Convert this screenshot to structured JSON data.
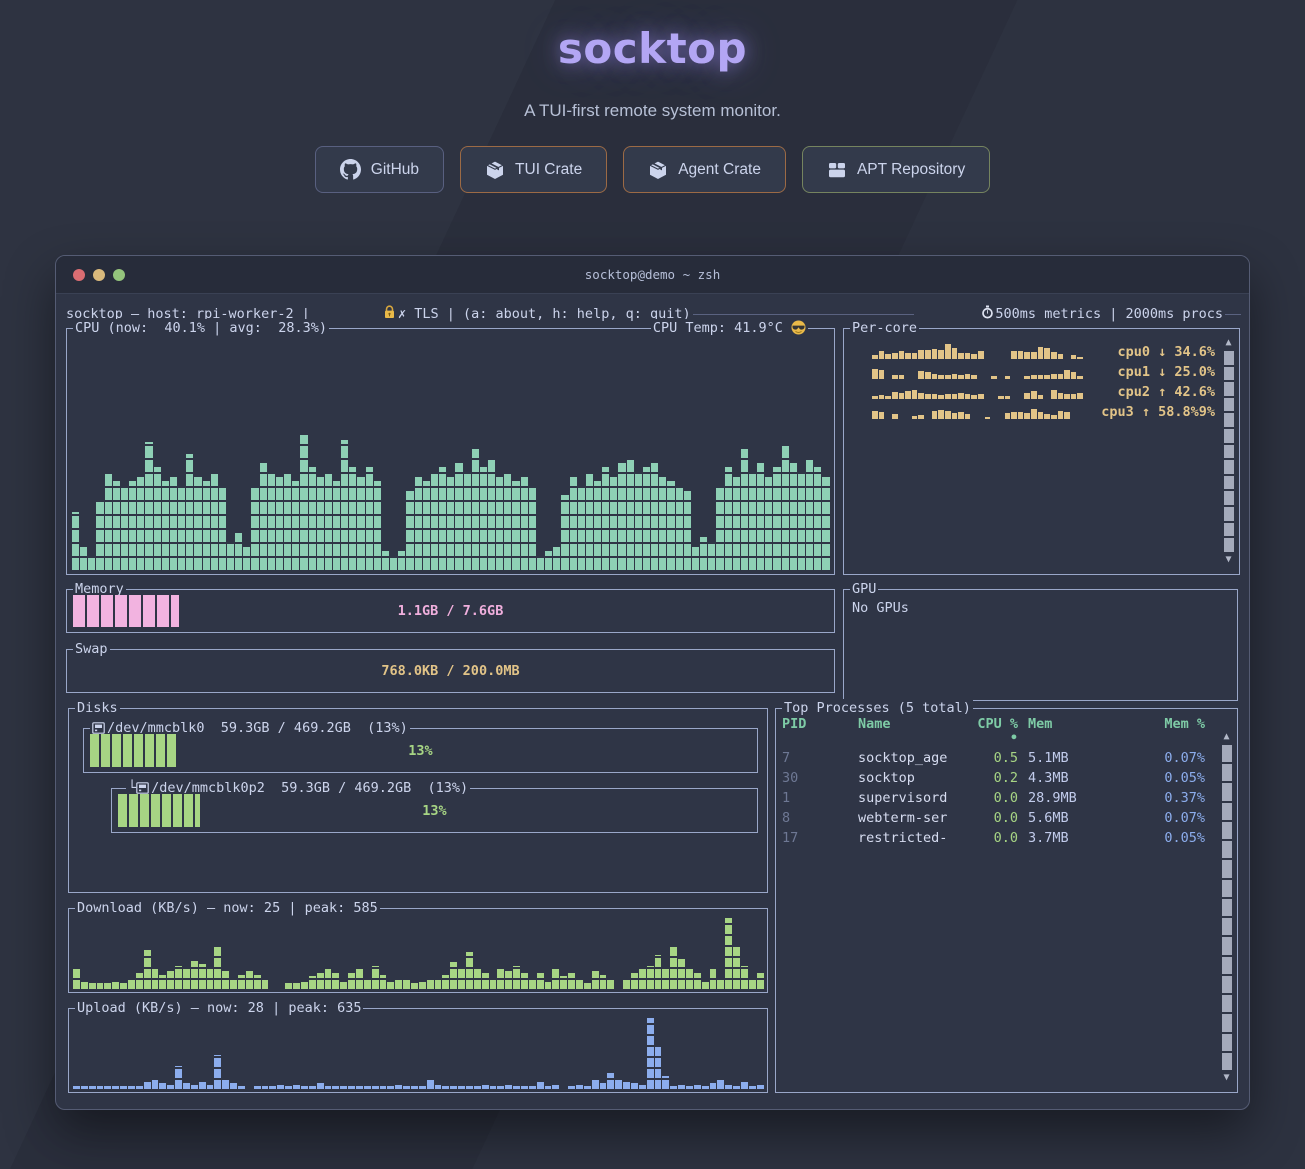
{
  "colors": {
    "accent_purple": "#b3a6f4",
    "teal": "#8ed0b5",
    "tan": "#e2c488",
    "pink": "#f0afdd",
    "green": "#a7d584",
    "blue": "#8caded",
    "header_teal": "#7ecba6",
    "term_bg": "#2f3546",
    "border": "#9aa7c9"
  },
  "hero": {
    "title": "socktop",
    "subtitle": "A TUI-first remote system monitor.",
    "buttons": [
      {
        "label": "GitHub",
        "icon": "github-icon"
      },
      {
        "label": "TUI Crate",
        "icon": "crate-icon"
      },
      {
        "label": "Agent Crate",
        "icon": "crate-icon"
      },
      {
        "label": "APT Repository",
        "icon": "apt-icon"
      }
    ]
  },
  "terminal": {
    "titlebar": "socktop@demo ~ zsh",
    "statusline": {
      "left": "socktop — host: rpi-worker-2 | ",
      "lock_icon": "lock-icon",
      "tls": "✗ TLS | (a: about, h: help, q: quit)",
      "timer_icon": "stopwatch-icon",
      "right": "500ms metrics | 2000ms procs"
    },
    "panels": {
      "cpu": {
        "title": "CPU (now:  40.1% | avg:  28.3%)",
        "temp": "CPU Temp: 41.9°C ",
        "temp_icon": "sunglasses-emoji-icon"
      },
      "percore": {
        "title": "Per-core"
      },
      "memory": {
        "title": "Memory",
        "label": "1.1GB / 7.6GB",
        "fill_pct": 14
      },
      "gpu": {
        "title": "GPU",
        "text": "No GPUs"
      },
      "swap": {
        "title": "Swap",
        "label": "768.0KB / 200.0MB",
        "fill_pct": 0
      },
      "disks": {
        "title": "Disks",
        "items": [
          {
            "prefix": "",
            "icon": "disk-icon",
            "title": "/dev/mmcblk0  59.3GB / 469.2GB  (13%)",
            "gauge_label": "13%",
            "fill_pct": 13
          },
          {
            "prefix": "└",
            "icon": "disk-icon",
            "title": "/dev/mmcblk0p2  59.3GB / 469.2GB  (13%)",
            "gauge_label": "13%",
            "fill_pct": 13
          }
        ]
      },
      "processes": {
        "title": "Top Processes (5 total)",
        "headers": [
          "PID",
          "Name",
          "CPU % •",
          "Mem",
          "Mem %"
        ],
        "rows": [
          {
            "pid": "7",
            "name": "socktop_age",
            "cpu": "0.5",
            "mem": "5.1MB",
            "mempct": "0.07%",
            "highlight": true
          },
          {
            "pid": "30",
            "name": "socktop",
            "cpu": "0.2",
            "mem": "4.3MB",
            "mempct": "0.05%",
            "highlight": false
          },
          {
            "pid": "1",
            "name": "supervisord",
            "cpu": "0.0",
            "mem": "28.9MB",
            "mempct": "0.37%",
            "highlight": false
          },
          {
            "pid": "8",
            "name": "webterm-ser",
            "cpu": "0.0",
            "mem": "5.6MB",
            "mempct": "0.07%",
            "highlight": false
          },
          {
            "pid": "17",
            "name": "restricted-",
            "cpu": "0.0",
            "mem": "3.7MB",
            "mempct": "0.05%",
            "highlight": false
          }
        ]
      },
      "download": {
        "title": "Download (KB/s) — now: 25 | peak: 585"
      },
      "upload": {
        "title": "Upload (KB/s) — now: 28 | peak: 635"
      }
    }
  },
  "chart_data": [
    {
      "type": "bar",
      "name": "cpu_history",
      "ylabel": "cpu %",
      "ylim": [
        0,
        100
      ],
      "values": [
        25,
        10,
        6,
        30,
        42,
        38,
        36,
        38,
        40,
        55,
        44,
        38,
        40,
        36,
        50,
        40,
        38,
        42,
        36,
        12,
        16,
        10,
        36,
        46,
        42,
        40,
        42,
        38,
        58,
        44,
        40,
        42,
        38,
        56,
        44,
        40,
        44,
        38,
        8,
        6,
        8,
        34,
        40,
        38,
        42,
        44,
        40,
        46,
        42,
        52,
        44,
        48,
        40,
        42,
        38,
        40,
        36,
        6,
        8,
        10,
        32,
        40,
        36,
        42,
        38,
        44,
        40,
        46,
        48,
        42,
        44,
        46,
        40,
        38,
        36,
        34,
        10,
        14,
        12,
        36,
        44,
        40,
        52,
        42,
        46,
        40,
        44,
        54,
        46,
        42,
        48,
        44,
        40
      ]
    },
    {
      "type": "bar",
      "name": "per_core_sparklines",
      "series": [
        {
          "name": "cpu0",
          "trend": "↓",
          "load": "34.6%",
          "values": [
            25,
            45,
            30,
            32,
            42,
            36,
            36,
            52,
            50,
            56,
            50,
            85,
            62,
            36,
            34,
            30,
            42,
            0,
            0,
            0,
            0,
            42,
            46,
            40,
            38,
            66,
            60,
            40,
            28,
            0,
            20,
            12
          ]
        },
        {
          "name": "cpu1",
          "trend": "↓",
          "load": "25.0%",
          "values": [
            55,
            50,
            0,
            25,
            22,
            0,
            0,
            45,
            38,
            28,
            20,
            24,
            26,
            20,
            26,
            24,
            0,
            0,
            14,
            0,
            14,
            0,
            0,
            18,
            22,
            24,
            24,
            26,
            30,
            48,
            40,
            14
          ]
        },
        {
          "name": "cpu2",
          "trend": "↑",
          "load": "42.6%",
          "values": [
            18,
            24,
            16,
            38,
            34,
            44,
            50,
            34,
            28,
            26,
            20,
            28,
            26,
            34,
            28,
            24,
            30,
            0,
            0,
            16,
            16,
            0,
            0,
            34,
            42,
            24,
            0,
            52,
            34,
            28,
            30,
            36
          ]
        },
        {
          "name": "cpu3",
          "trend": "↑",
          "load": "58.8%9%",
          "values": [
            45,
            40,
            0,
            26,
            0,
            0,
            18,
            20,
            0,
            44,
            50,
            44,
            36,
            38,
            26,
            0,
            0,
            12,
            0,
            0,
            36,
            38,
            40,
            36,
            54,
            38,
            28,
            22,
            46,
            38,
            0,
            0
          ]
        }
      ]
    },
    {
      "type": "bar",
      "name": "download_kbps",
      "now": 25,
      "peak": 585,
      "values": [
        30,
        10,
        8,
        8,
        8,
        10,
        8,
        15,
        22,
        55,
        28,
        20,
        25,
        32,
        28,
        40,
        35,
        28,
        60,
        25,
        12,
        20,
        26,
        20,
        15,
        0,
        0,
        8,
        8,
        10,
        18,
        22,
        28,
        22,
        10,
        22,
        28,
        15,
        32,
        20,
        10,
        15,
        12,
        8,
        10,
        15,
        12,
        20,
        38,
        28,
        52,
        28,
        22,
        15,
        28,
        25,
        32,
        22,
        15,
        22,
        10,
        28,
        18,
        22,
        12,
        8,
        25,
        20,
        12,
        0,
        15,
        22,
        28,
        32,
        48,
        28,
        62,
        42,
        28,
        22,
        10,
        28,
        15,
        100,
        62,
        32,
        15,
        22
      ]
    },
    {
      "type": "bar",
      "name": "upload_kbps",
      "now": 28,
      "peak": 635,
      "values": [
        4,
        4,
        4,
        4,
        4,
        4,
        4,
        4,
        4,
        10,
        14,
        8,
        6,
        32,
        8,
        6,
        10,
        6,
        48,
        15,
        8,
        4,
        0,
        4,
        4,
        4,
        6,
        4,
        6,
        4,
        4,
        8,
        4,
        4,
        4,
        4,
        4,
        4,
        4,
        4,
        4,
        6,
        4,
        4,
        4,
        12,
        6,
        4,
        4,
        4,
        4,
        4,
        6,
        4,
        4,
        6,
        4,
        4,
        4,
        10,
        4,
        6,
        0,
        4,
        6,
        4,
        15,
        8,
        22,
        12,
        10,
        8,
        6,
        100,
        62,
        18,
        4,
        6,
        4,
        6,
        4,
        8,
        12,
        6,
        4,
        10,
        4,
        6
      ]
    }
  ]
}
